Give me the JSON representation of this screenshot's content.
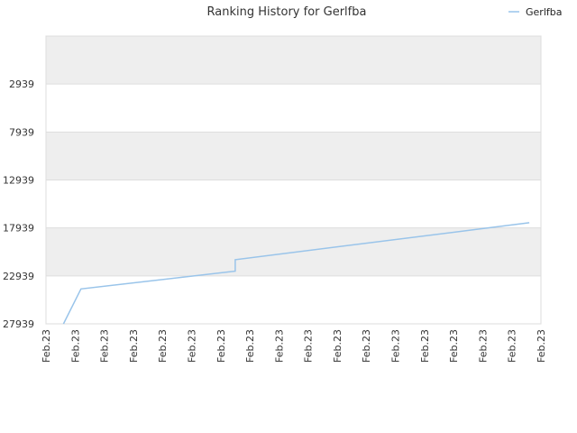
{
  "chart_data": {
    "type": "line",
    "title": "Ranking History for Gerlfba",
    "legend": {
      "position": "top-right",
      "entries": [
        "Gerlfba"
      ]
    },
    "xlabel": "",
    "ylabel": "",
    "y_inverted": true,
    "ylim": [
      27939,
      -2061
    ],
    "y_ticks": [
      2939,
      7939,
      12939,
      17939,
      22939,
      27939
    ],
    "y_tick_labels": [
      "2939",
      "7939",
      "12939",
      "17939",
      "22939",
      "27939"
    ],
    "x_tick_labels": [
      "Feb.23",
      "Feb.23",
      "Feb.23",
      "Feb.23",
      "Feb.23",
      "Feb.23",
      "Feb.23",
      "Feb.23",
      "Feb.23",
      "Feb.23",
      "Feb.23",
      "Feb.23",
      "Feb.23",
      "Feb.23",
      "Feb.23",
      "Feb.23",
      "Feb.23",
      "Feb.23"
    ],
    "xlim": [
      0,
      17
    ],
    "grid": true,
    "series": [
      {
        "name": "Gerlfba",
        "color": "#99c4ea",
        "x": [
          0.6,
          1.2,
          6.5,
          6.5,
          16.6
        ],
        "y": [
          27939,
          24300,
          22450,
          21250,
          17400
        ]
      }
    ]
  }
}
